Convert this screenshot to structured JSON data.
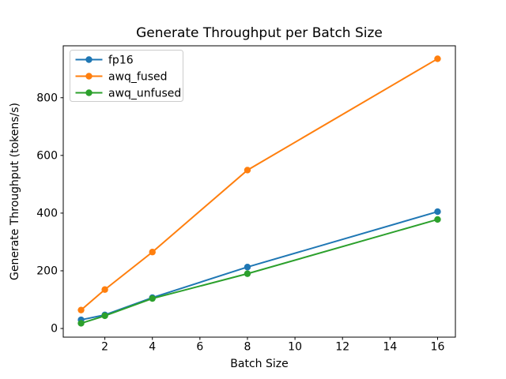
{
  "title": "Generate Throughput per Batch Size",
  "chart_data": {
    "type": "line",
    "title": "Generate Throughput per Batch Size",
    "xlabel": "Batch Size",
    "ylabel": "Generate Throughput (tokens/s)",
    "x": [
      1,
      2,
      4,
      8,
      16
    ],
    "series": [
      {
        "name": "fp16",
        "color": "#1f77b4",
        "values": [
          30,
          47,
          107,
          213,
          405
        ]
      },
      {
        "name": "awq_fused",
        "color": "#ff7f0e",
        "values": [
          64,
          135,
          265,
          549,
          935
        ]
      },
      {
        "name": "awq_unfused",
        "color": "#2ca02c",
        "values": [
          18,
          44,
          104,
          190,
          378
        ]
      }
    ],
    "xlim": [
      0.25,
      16.75
    ],
    "ylim": [
      -30,
      980
    ],
    "xticks": [
      2,
      4,
      6,
      8,
      10,
      12,
      14,
      16
    ],
    "yticks": [
      0,
      200,
      400,
      600,
      800
    ],
    "legend_position": "upper left",
    "grid": false,
    "marker": "o",
    "colors": {
      "text": "#000000",
      "spine": "#000000",
      "legend_border": "#cccccc",
      "background": "#ffffff"
    }
  }
}
